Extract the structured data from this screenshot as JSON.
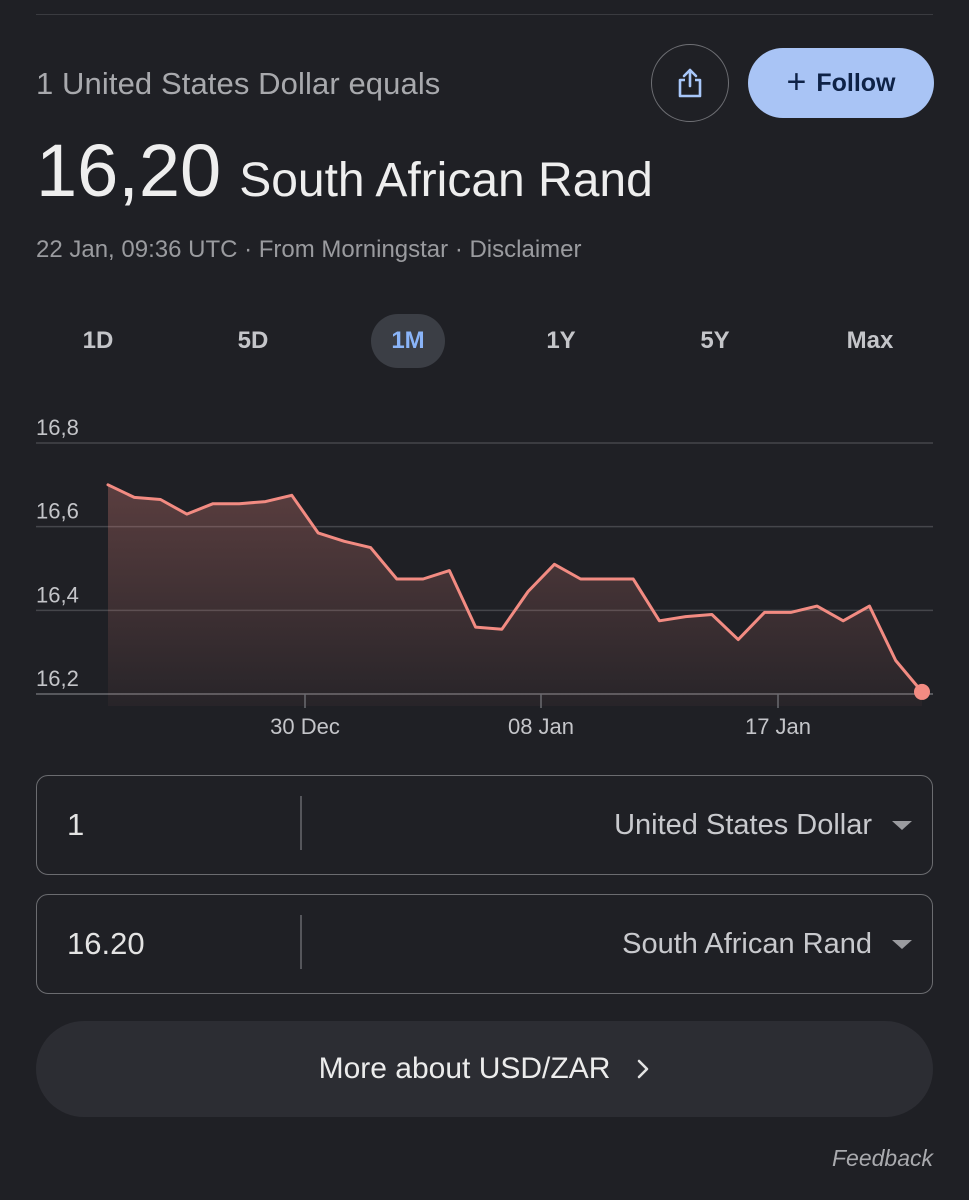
{
  "header": {
    "subtitle": "1 United States Dollar equals",
    "rate_value": "16,20",
    "rate_currency": "South African Rand",
    "meta": "22 Jan, 09:36 UTC · From Morningstar · Disclaimer",
    "follow_label": "Follow"
  },
  "icons": {
    "share": "share-icon",
    "plus": "plus-icon",
    "chevron": "chevron-right-icon",
    "caret": "caret-down-icon"
  },
  "range_tabs": [
    {
      "label": "1D",
      "active": false
    },
    {
      "label": "5D",
      "active": false
    },
    {
      "label": "1M",
      "active": true
    },
    {
      "label": "1Y",
      "active": false
    },
    {
      "label": "5Y",
      "active": false
    },
    {
      "label": "Max",
      "active": false
    }
  ],
  "colors": {
    "line": "#f28b82",
    "accent": "#a9c4f5",
    "active_tab": "#8ab4f8"
  },
  "chart_data": {
    "type": "line",
    "title": "",
    "ylim": [
      16.2,
      16.8
    ],
    "y_ticks": [
      "16,8",
      "16,6",
      "16,4",
      "16,2"
    ],
    "x_ticks": [
      "30 Dec",
      "08 Jan",
      "17 Jan"
    ],
    "series": [
      {
        "values": [
          16.7,
          16.67,
          16.665,
          16.63,
          16.655,
          16.655,
          16.66,
          16.675,
          16.585,
          16.565,
          16.55,
          16.475,
          16.475,
          16.495,
          16.36,
          16.355,
          16.445,
          16.51,
          16.475,
          16.475,
          16.475,
          16.375,
          16.385,
          16.39,
          16.33,
          16.395,
          16.395,
          16.41,
          16.375,
          16.41,
          16.28,
          16.205
        ]
      }
    ],
    "grid": true
  },
  "converter": {
    "from_amount": "1",
    "from_currency": "United States Dollar",
    "to_amount": "16.20",
    "to_currency": "South African Rand"
  },
  "more_label": "More about USD/ZAR",
  "feedback_label": "Feedback"
}
